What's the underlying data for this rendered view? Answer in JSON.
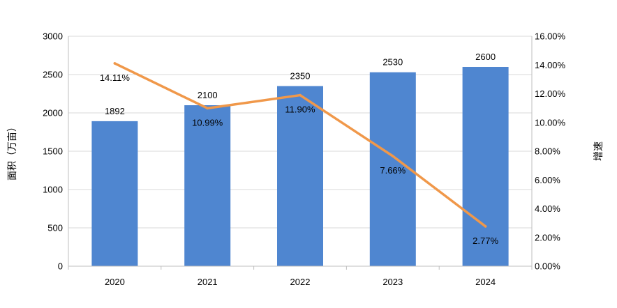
{
  "chart_data": {
    "type": "bar",
    "categories": [
      "2020",
      "2021",
      "2022",
      "2023",
      "2024"
    ],
    "series": [
      {
        "type": "bar",
        "axis": "left",
        "values": [
          1892,
          2100,
          2350,
          2530,
          2600
        ],
        "labels": [
          "1892",
          "2100",
          "2350",
          "2530",
          "2600"
        ],
        "color": "#4f86d0"
      },
      {
        "type": "line",
        "axis": "right",
        "values": [
          14.11,
          10.99,
          11.9,
          7.66,
          2.77
        ],
        "labels": [
          "14.11%",
          "10.99%",
          "11.90%",
          "7.66%",
          "2.77%"
        ],
        "color": "#f0984a"
      }
    ],
    "y_left": {
      "label": "面积（万亩）",
      "ylim": [
        0,
        3000
      ],
      "ticks": [
        "0",
        "500",
        "1000",
        "1500",
        "2000",
        "2500",
        "3000"
      ]
    },
    "y_right": {
      "label": "增速",
      "ylim": [
        0,
        16
      ],
      "ticks": [
        "0.00%",
        "2.00%",
        "4.00%",
        "6.00%",
        "8.00%",
        "10.00%",
        "12.00%",
        "14.00%",
        "16.00%"
      ]
    },
    "grid": true,
    "legend": "none"
  }
}
